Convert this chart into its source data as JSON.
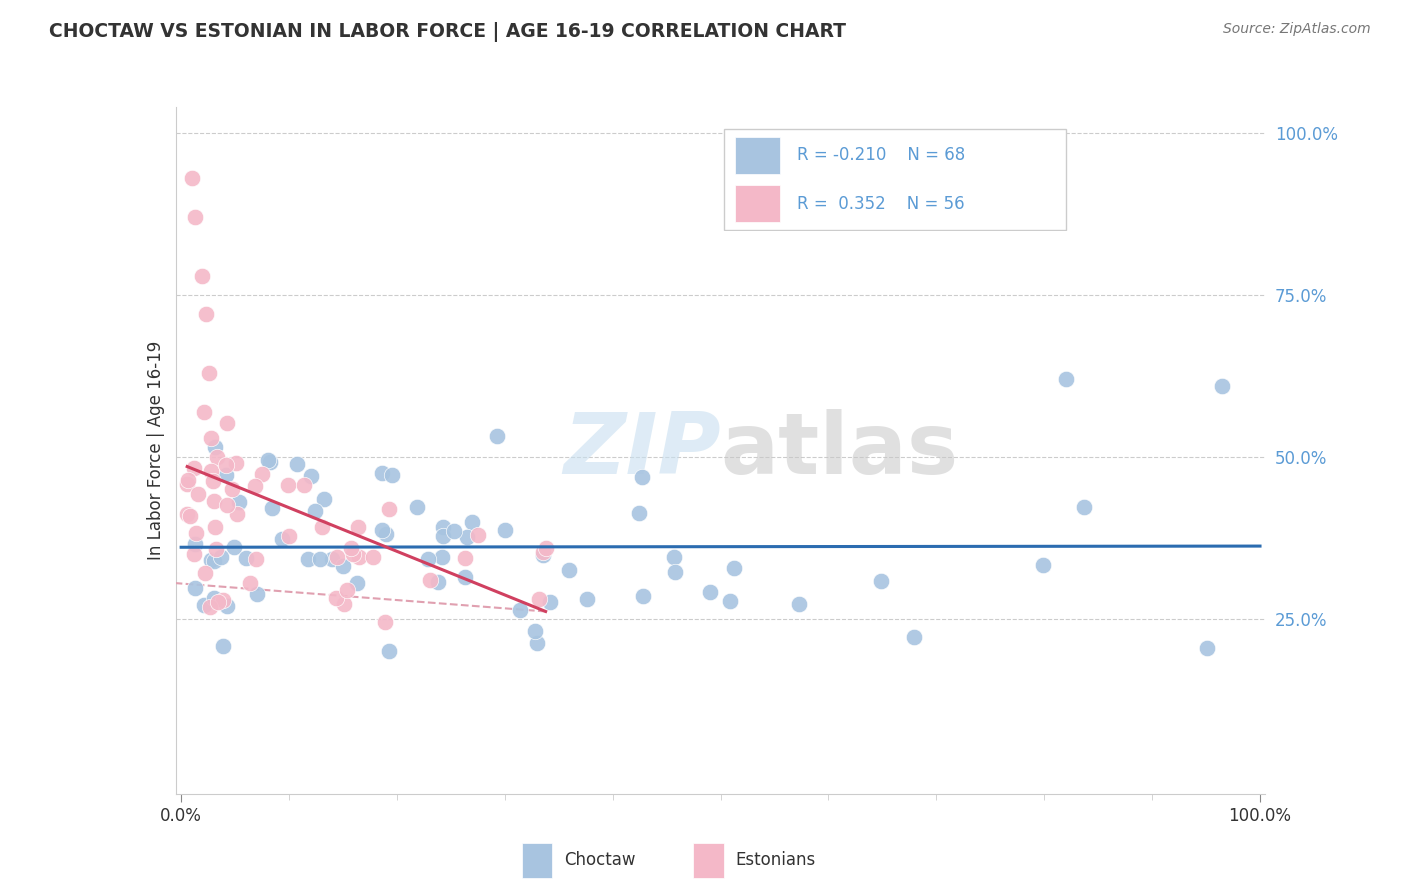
{
  "title": "CHOCTAW VS ESTONIAN IN LABOR FORCE | AGE 16-19 CORRELATION CHART",
  "source": "Source: ZipAtlas.com",
  "ylabel": "In Labor Force | Age 16-19",
  "choctaw_color": "#a8c4e0",
  "choctaw_edge_color": "#7aafd4",
  "estonian_color": "#f4b8c8",
  "estonian_edge_color": "#e07090",
  "choctaw_line_color": "#2b6cb0",
  "estonian_line_color": "#d04060",
  "estonian_dash_color": "#e0a0b0",
  "grid_color": "#cccccc",
  "ytick_color": "#5b9bd5",
  "text_color": "#333333",
  "watermark_zip_color": "#c8dff0",
  "watermark_atlas_color": "#c8c8c8",
  "legend_r1": "R = -0.210",
  "legend_n1": "N = 68",
  "legend_r2": "R =  0.352",
  "legend_n2": "N = 56"
}
